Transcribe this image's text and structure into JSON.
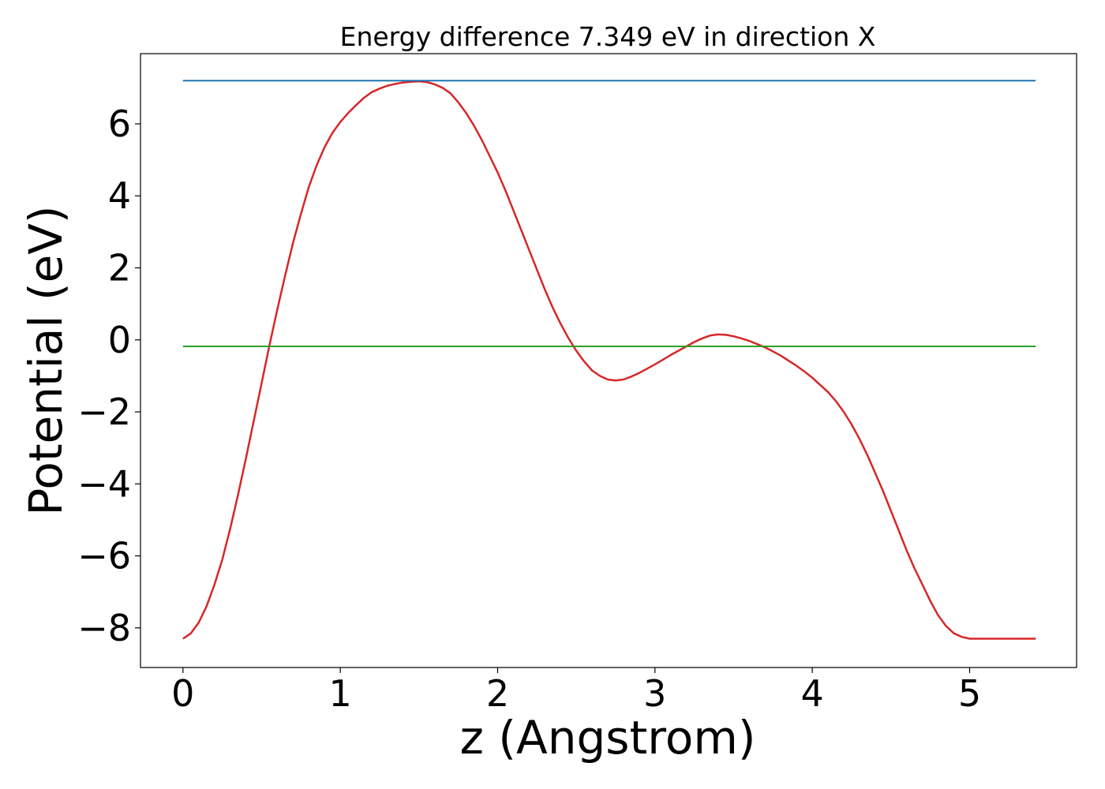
{
  "chart_data": {
    "type": "line",
    "title": "Energy difference 7.349 eV in direction X",
    "xlabel": "z (Angstrom)",
    "ylabel": "Potential (eV)",
    "xlim": [
      -0.27,
      5.68
    ],
    "ylim": [
      -9.1,
      7.95
    ],
    "xticks": [
      0,
      1,
      2,
      3,
      4,
      5
    ],
    "xtick_labels": [
      "0",
      "1",
      "2",
      "3",
      "4",
      "5"
    ],
    "yticks": [
      6,
      4,
      2,
      0,
      -2,
      -4,
      -6,
      -8
    ],
    "ytick_labels": [
      "6",
      "4",
      "2",
      "0",
      "−2",
      "−4",
      "−6",
      "−8"
    ],
    "grid": false,
    "series": [
      {
        "color": "#d62728",
        "x": [
          0,
          0.05,
          0.1,
          0.15,
          0.2,
          0.25,
          0.3,
          0.35,
          0.4,
          0.45,
          0.5,
          0.55,
          0.6,
          0.65,
          0.7,
          0.75,
          0.8,
          0.85,
          0.9,
          0.95,
          1.0,
          1.05,
          1.1,
          1.15,
          1.2,
          1.25,
          1.3,
          1.35,
          1.4,
          1.45,
          1.5,
          1.55,
          1.6,
          1.65,
          1.7,
          1.75,
          1.8,
          1.85,
          1.9,
          1.95,
          2.0,
          2.05,
          2.1,
          2.15,
          2.2,
          2.25,
          2.3,
          2.35,
          2.4,
          2.45,
          2.5,
          2.55,
          2.6,
          2.65,
          2.7,
          2.75,
          2.8,
          2.85,
          2.9,
          2.95,
          3.0,
          3.05,
          3.1,
          3.15,
          3.2,
          3.25,
          3.3,
          3.35,
          3.4,
          3.45,
          3.5,
          3.55,
          3.6,
          3.65,
          3.7,
          3.75,
          3.8,
          3.85,
          3.9,
          3.95,
          4.0,
          4.05,
          4.1,
          4.15,
          4.2,
          4.25,
          4.3,
          4.35,
          4.4,
          4.45,
          4.5,
          4.55,
          4.6,
          4.65,
          4.7,
          4.75,
          4.8,
          4.85,
          4.9,
          4.95,
          5.0,
          5.05,
          5.1,
          5.15,
          5.2,
          5.25,
          5.3,
          5.35,
          5.4,
          5.42
        ],
        "y": [
          -8.3,
          -8.15,
          -7.85,
          -7.4,
          -6.8,
          -6.1,
          -5.25,
          -4.3,
          -3.3,
          -2.25,
          -1.2,
          -0.15,
          0.85,
          1.8,
          2.7,
          3.5,
          4.25,
          4.85,
          5.35,
          5.75,
          6.05,
          6.3,
          6.52,
          6.72,
          6.88,
          6.98,
          7.06,
          7.11,
          7.15,
          7.17,
          7.18,
          7.16,
          7.1,
          7.0,
          6.85,
          6.6,
          6.3,
          5.95,
          5.55,
          5.1,
          4.65,
          4.15,
          3.6,
          3.05,
          2.5,
          1.95,
          1.4,
          0.9,
          0.45,
          0.05,
          -0.3,
          -0.6,
          -0.85,
          -1.0,
          -1.1,
          -1.13,
          -1.1,
          -1.02,
          -0.92,
          -0.8,
          -0.68,
          -0.55,
          -0.42,
          -0.3,
          -0.18,
          -0.06,
          0.04,
          0.12,
          0.15,
          0.14,
          0.1,
          0.04,
          -0.03,
          -0.12,
          -0.21,
          -0.32,
          -0.44,
          -0.58,
          -0.72,
          -0.88,
          -1.05,
          -1.25,
          -1.45,
          -1.7,
          -2.0,
          -2.35,
          -2.75,
          -3.2,
          -3.7,
          -4.2,
          -4.75,
          -5.3,
          -5.85,
          -6.35,
          -6.8,
          -7.25,
          -7.65,
          -7.95,
          -8.15,
          -8.25,
          -8.3,
          -8.3,
          -8.3,
          -8.3,
          -8.3,
          -8.3,
          -8.3,
          -8.3,
          -8.3,
          -8.3
        ]
      },
      {
        "color": "#1f77b4",
        "x": [
          0,
          5.42
        ],
        "y": [
          7.2,
          7.2
        ]
      },
      {
        "color": "#2ca02c",
        "x": [
          0,
          5.42
        ],
        "y": [
          -0.18,
          -0.18
        ]
      }
    ]
  }
}
